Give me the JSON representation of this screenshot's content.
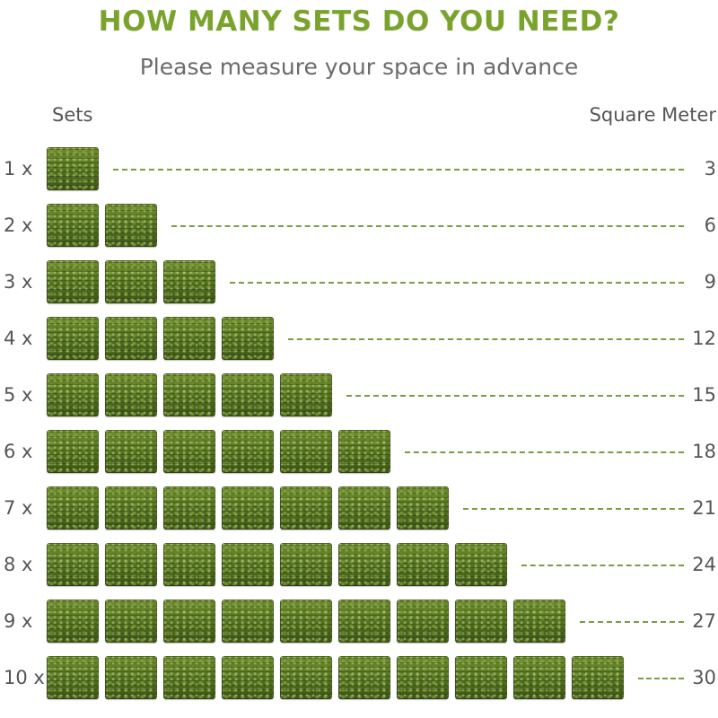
{
  "title": "HOW MANY SETS DO YOU NEED?",
  "subtitle": "Please measure your space in advance",
  "columns": {
    "left": "Sets",
    "right": "Square Meter"
  },
  "colors": {
    "title": "#7aa32d",
    "tile": "#557a22",
    "dash": "#7d9b45"
  },
  "rows": [
    {
      "label": "1 x",
      "count": 1,
      "value": "3"
    },
    {
      "label": "2 x",
      "count": 2,
      "value": "6"
    },
    {
      "label": "3 x",
      "count": 3,
      "value": "9"
    },
    {
      "label": "4 x",
      "count": 4,
      "value": "12"
    },
    {
      "label": "5 x",
      "count": 5,
      "value": "15"
    },
    {
      "label": "6 x",
      "count": 6,
      "value": "18"
    },
    {
      "label": "7 x",
      "count": 7,
      "value": "21"
    },
    {
      "label": "8 x",
      "count": 8,
      "value": "24"
    },
    {
      "label": "9 x",
      "count": 9,
      "value": "27"
    },
    {
      "label": "10 x",
      "count": 10,
      "value": "30"
    }
  ]
}
